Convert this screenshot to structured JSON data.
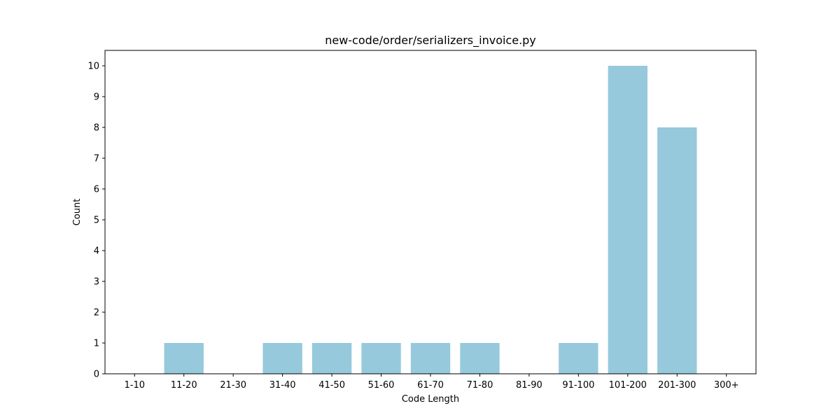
{
  "chart_data": {
    "type": "bar",
    "title": "new-code/order/serializers_invoice.py",
    "xlabel": "Code Length",
    "ylabel": "Count",
    "categories": [
      "1-10",
      "11-20",
      "21-30",
      "31-40",
      "41-50",
      "51-60",
      "61-70",
      "71-80",
      "81-90",
      "91-100",
      "101-200",
      "201-300",
      "300+"
    ],
    "values": [
      0,
      1,
      0,
      1,
      1,
      1,
      1,
      1,
      0,
      1,
      10,
      8,
      0
    ],
    "yticks": [
      "0",
      "1",
      "2",
      "3",
      "4",
      "5",
      "6",
      "7",
      "8",
      "9",
      "10"
    ],
    "ylim": [
      0,
      10.5
    ],
    "grid": false,
    "bar_color": "#96c9dc"
  }
}
